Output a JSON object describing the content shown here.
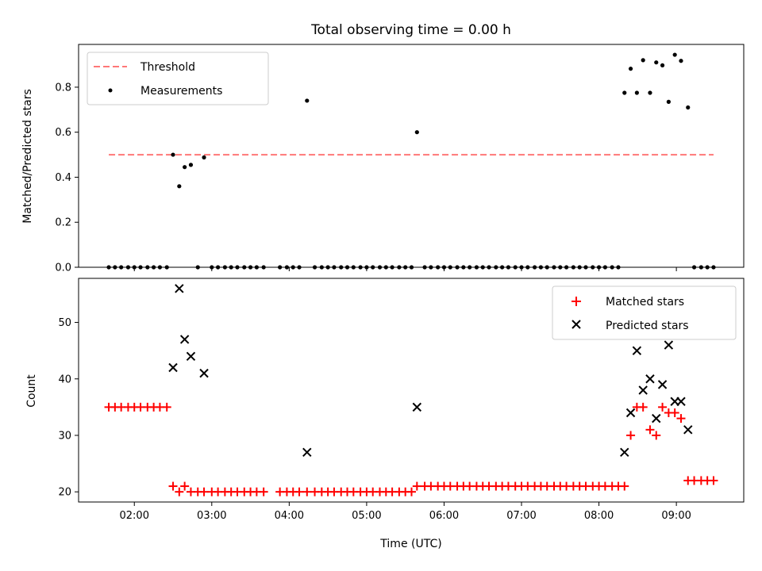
{
  "chart_data": [
    {
      "type": "scatter",
      "title": "Total observing time = 0.00 h",
      "xlabel": "",
      "ylabel": "Matched/Predicted stars",
      "xlim_hours": [
        1.28,
        9.87
      ],
      "ylim": [
        0,
        0.99
      ],
      "yticks": [
        0,
        0.2,
        0.4,
        0.6,
        0.8
      ],
      "ytick_labels": [
        "0.0",
        "0.2",
        "0.4",
        "0.6",
        "0.8"
      ],
      "legend_position": "upper-left",
      "threshold": {
        "name": "Threshold",
        "value": 0.5,
        "x_start": 1.67,
        "x_end": 9.48,
        "color": "#ff7777"
      },
      "series": [
        {
          "name": "Measurements",
          "color": "#000000",
          "marker": "dot",
          "points": [
            [
              1.67,
              0
            ],
            [
              1.75,
              0
            ],
            [
              1.83,
              0
            ],
            [
              1.92,
              0
            ],
            [
              2.0,
              0
            ],
            [
              2.08,
              0
            ],
            [
              2.17,
              0
            ],
            [
              2.25,
              0
            ],
            [
              2.33,
              0
            ],
            [
              2.42,
              0
            ],
            [
              2.5,
              0.5
            ],
            [
              2.58,
              0.36
            ],
            [
              2.65,
              0.445
            ],
            [
              2.73,
              0.455
            ],
            [
              2.82,
              0
            ],
            [
              2.9,
              0.488
            ],
            [
              3.0,
              0
            ],
            [
              3.08,
              0
            ],
            [
              3.17,
              0
            ],
            [
              3.25,
              0
            ],
            [
              3.33,
              0
            ],
            [
              3.42,
              0
            ],
            [
              3.5,
              0
            ],
            [
              3.58,
              0
            ],
            [
              3.67,
              0
            ],
            [
              3.88,
              0
            ],
            [
              3.97,
              0
            ],
            [
              4.05,
              0
            ],
            [
              4.13,
              0
            ],
            [
              4.23,
              0.74
            ],
            [
              4.33,
              0
            ],
            [
              4.42,
              0
            ],
            [
              4.5,
              0
            ],
            [
              4.58,
              0
            ],
            [
              4.67,
              0
            ],
            [
              4.75,
              0
            ],
            [
              4.83,
              0
            ],
            [
              4.92,
              0
            ],
            [
              5.0,
              0
            ],
            [
              5.08,
              0
            ],
            [
              5.17,
              0
            ],
            [
              5.25,
              0
            ],
            [
              5.33,
              0
            ],
            [
              5.42,
              0
            ],
            [
              5.5,
              0
            ],
            [
              5.58,
              0
            ],
            [
              5.65,
              0.6
            ],
            [
              5.75,
              0
            ],
            [
              5.83,
              0
            ],
            [
              5.92,
              0
            ],
            [
              6.0,
              0
            ],
            [
              6.08,
              0
            ],
            [
              6.17,
              0
            ],
            [
              6.25,
              0
            ],
            [
              6.33,
              0
            ],
            [
              6.42,
              0
            ],
            [
              6.5,
              0
            ],
            [
              6.58,
              0
            ],
            [
              6.67,
              0
            ],
            [
              6.75,
              0
            ],
            [
              6.83,
              0
            ],
            [
              6.92,
              0
            ],
            [
              7.0,
              0
            ],
            [
              7.08,
              0
            ],
            [
              7.17,
              0
            ],
            [
              7.25,
              0
            ],
            [
              7.33,
              0
            ],
            [
              7.42,
              0
            ],
            [
              7.5,
              0
            ],
            [
              7.58,
              0
            ],
            [
              7.67,
              0
            ],
            [
              7.75,
              0
            ],
            [
              7.83,
              0
            ],
            [
              7.92,
              0
            ],
            [
              8.0,
              0
            ],
            [
              8.08,
              0
            ],
            [
              8.17,
              0
            ],
            [
              8.25,
              0
            ],
            [
              8.33,
              0.775
            ],
            [
              8.41,
              0.882
            ],
            [
              8.49,
              0.775
            ],
            [
              8.57,
              0.92
            ],
            [
              8.66,
              0.775
            ],
            [
              8.74,
              0.91
            ],
            [
              8.82,
              0.897
            ],
            [
              8.9,
              0.735
            ],
            [
              8.98,
              0.944
            ],
            [
              9.06,
              0.917
            ],
            [
              9.15,
              0.71
            ],
            [
              9.23,
              0
            ],
            [
              9.32,
              0
            ],
            [
              9.4,
              0
            ],
            [
              9.48,
              0
            ]
          ]
        }
      ]
    },
    {
      "type": "scatter",
      "title": "",
      "xlabel": "Time (UTC)",
      "ylabel": "Count",
      "xlim_hours": [
        1.28,
        9.87
      ],
      "ylim": [
        18.2,
        57.8
      ],
      "yticks": [
        20,
        30,
        40,
        50
      ],
      "ytick_labels": [
        "20",
        "30",
        "40",
        "50"
      ],
      "xticks_hours": [
        2,
        3,
        4,
        5,
        6,
        7,
        8,
        9
      ],
      "xtick_labels": [
        "02:00",
        "03:00",
        "04:00",
        "05:00",
        "06:00",
        "07:00",
        "08:00",
        "09:00"
      ],
      "legend_position": "upper-right",
      "series": [
        {
          "name": "Matched stars",
          "color": "#ff0000",
          "marker": "plus",
          "points": [
            [
              1.67,
              35
            ],
            [
              1.75,
              35
            ],
            [
              1.83,
              35
            ],
            [
              1.92,
              35
            ],
            [
              2.0,
              35
            ],
            [
              2.08,
              35
            ],
            [
              2.17,
              35
            ],
            [
              2.25,
              35
            ],
            [
              2.33,
              35
            ],
            [
              2.42,
              35
            ],
            [
              2.5,
              21
            ],
            [
              2.58,
              20
            ],
            [
              2.65,
              21
            ],
            [
              2.73,
              20
            ],
            [
              2.82,
              20
            ],
            [
              2.9,
              20
            ],
            [
              3.0,
              20
            ],
            [
              3.08,
              20
            ],
            [
              3.17,
              20
            ],
            [
              3.25,
              20
            ],
            [
              3.33,
              20
            ],
            [
              3.42,
              20
            ],
            [
              3.5,
              20
            ],
            [
              3.58,
              20
            ],
            [
              3.67,
              20
            ],
            [
              3.88,
              20
            ],
            [
              3.97,
              20
            ],
            [
              4.05,
              20
            ],
            [
              4.13,
              20
            ],
            [
              4.23,
              20
            ],
            [
              4.33,
              20
            ],
            [
              4.42,
              20
            ],
            [
              4.5,
              20
            ],
            [
              4.58,
              20
            ],
            [
              4.67,
              20
            ],
            [
              4.75,
              20
            ],
            [
              4.83,
              20
            ],
            [
              4.92,
              20
            ],
            [
              5.0,
              20
            ],
            [
              5.08,
              20
            ],
            [
              5.17,
              20
            ],
            [
              5.25,
              20
            ],
            [
              5.33,
              20
            ],
            [
              5.42,
              20
            ],
            [
              5.5,
              20
            ],
            [
              5.58,
              20
            ],
            [
              5.65,
              21
            ],
            [
              5.75,
              21
            ],
            [
              5.83,
              21
            ],
            [
              5.92,
              21
            ],
            [
              6.0,
              21
            ],
            [
              6.08,
              21
            ],
            [
              6.17,
              21
            ],
            [
              6.25,
              21
            ],
            [
              6.33,
              21
            ],
            [
              6.42,
              21
            ],
            [
              6.5,
              21
            ],
            [
              6.58,
              21
            ],
            [
              6.67,
              21
            ],
            [
              6.75,
              21
            ],
            [
              6.83,
              21
            ],
            [
              6.92,
              21
            ],
            [
              7.0,
              21
            ],
            [
              7.08,
              21
            ],
            [
              7.17,
              21
            ],
            [
              7.25,
              21
            ],
            [
              7.33,
              21
            ],
            [
              7.42,
              21
            ],
            [
              7.5,
              21
            ],
            [
              7.58,
              21
            ],
            [
              7.67,
              21
            ],
            [
              7.75,
              21
            ],
            [
              7.83,
              21
            ],
            [
              7.92,
              21
            ],
            [
              8.0,
              21
            ],
            [
              8.08,
              21
            ],
            [
              8.17,
              21
            ],
            [
              8.25,
              21
            ],
            [
              8.33,
              21
            ],
            [
              8.41,
              30
            ],
            [
              8.49,
              35
            ],
            [
              8.57,
              35
            ],
            [
              8.66,
              31
            ],
            [
              8.74,
              30
            ],
            [
              8.82,
              35
            ],
            [
              8.9,
              34
            ],
            [
              8.98,
              34
            ],
            [
              9.06,
              33
            ],
            [
              9.15,
              22
            ],
            [
              9.23,
              22
            ],
            [
              9.32,
              22
            ],
            [
              9.4,
              22
            ],
            [
              9.48,
              22
            ]
          ]
        },
        {
          "name": "Predicted stars",
          "color": "#000000",
          "marker": "x",
          "points": [
            [
              2.5,
              42
            ],
            [
              2.58,
              56
            ],
            [
              2.65,
              47
            ],
            [
              2.73,
              44
            ],
            [
              2.9,
              41
            ],
            [
              4.23,
              27
            ],
            [
              5.65,
              35
            ],
            [
              8.33,
              27
            ],
            [
              8.41,
              34
            ],
            [
              8.49,
              45
            ],
            [
              8.57,
              38
            ],
            [
              8.66,
              40
            ],
            [
              8.74,
              33
            ],
            [
              8.82,
              39
            ],
            [
              8.9,
              46
            ],
            [
              8.98,
              36
            ],
            [
              9.06,
              36
            ],
            [
              9.15,
              31
            ]
          ]
        }
      ]
    }
  ]
}
